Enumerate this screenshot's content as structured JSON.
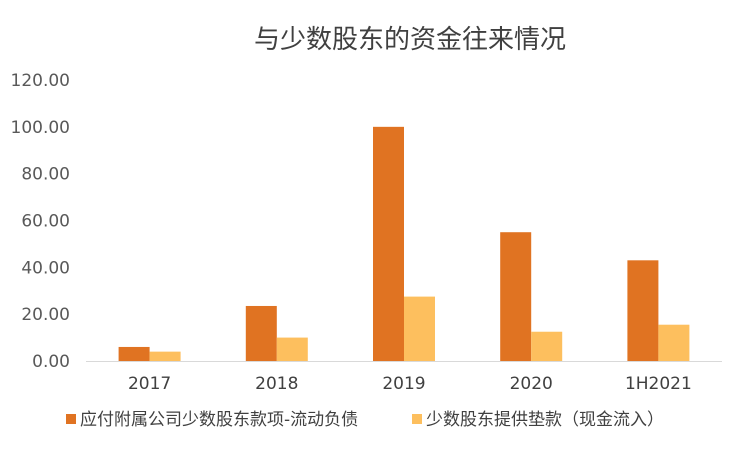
{
  "chart_data": {
    "type": "bar",
    "title": "与少数股东的资金往来情况",
    "categories": [
      "2017",
      "2018",
      "2019",
      "2020",
      "1H2021"
    ],
    "ylim": [
      0,
      120
    ],
    "yticks": [
      "0.00",
      "20.00",
      "40.00",
      "60.00",
      "80.00",
      "100.00",
      "120.00"
    ],
    "grid": false,
    "legend_position": "bottom",
    "series": [
      {
        "name": "应付附属公司少数股东款项-流动负债",
        "color": "#E07322",
        "values": [
          6,
          23.5,
          100,
          55,
          43
        ]
      },
      {
        "name": "少数股东提供垫款（现金流入）",
        "color": "#FDBF5E",
        "values": [
          4,
          10,
          27.5,
          12.5,
          15.5
        ]
      }
    ]
  }
}
